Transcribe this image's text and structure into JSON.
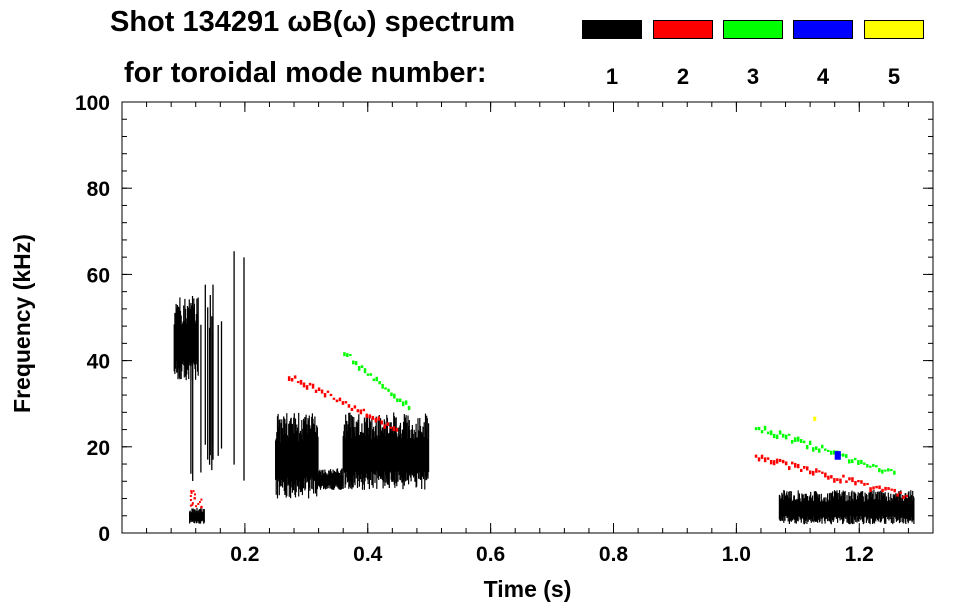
{
  "chart_data": {
    "type": "heatmap",
    "title": "Shot 134291 ωB(ω) spectrum",
    "subtitle": "for toroidal mode number:",
    "xlabel": "Time (s)",
    "ylabel": "Frequency (kHz)",
    "xlim": [
      0.0,
      1.32
    ],
    "ylim": [
      0,
      100
    ],
    "xticks": [
      0.2,
      0.4,
      0.6,
      0.8,
      1.0,
      1.2
    ],
    "xtick_labels": [
      "0.2",
      "0.4",
      "0.6",
      "0.8",
      "1.0",
      "1.2"
    ],
    "yticks": [
      0,
      20,
      40,
      60,
      80,
      100
    ],
    "ytick_labels": [
      "0",
      "20",
      "40",
      "60",
      "80",
      "100"
    ],
    "x_minor_step": 0.04,
    "y_minor_step": 4,
    "legend": [
      {
        "label": "1",
        "color": "#000000"
      },
      {
        "label": "2",
        "color": "#ff0000"
      },
      {
        "label": "3",
        "color": "#00ff00"
      },
      {
        "label": "4",
        "color": "#0000ff"
      },
      {
        "label": "5",
        "color": "#ffff00"
      }
    ],
    "series": [
      {
        "name": "n=1",
        "color": "#000000",
        "regions": [
          {
            "t0": 0.085,
            "t1": 0.125,
            "f0": 35,
            "f1": 55,
            "density": "dense"
          },
          {
            "t0": 0.11,
            "t1": 0.135,
            "f0": 2,
            "f1": 6,
            "density": "dense"
          },
          {
            "t0": 0.11,
            "t1": 0.2,
            "f0": 10,
            "f1": 70,
            "density": "vertical-streaks"
          },
          {
            "t0": 0.25,
            "t1": 0.32,
            "f0": 8,
            "f1": 28,
            "density": "dense"
          },
          {
            "t0": 0.32,
            "t1": 0.36,
            "f0": 10,
            "f1": 15,
            "density": "dense"
          },
          {
            "t0": 0.36,
            "t1": 0.5,
            "f0": 10,
            "f1": 28,
            "density": "dense"
          },
          {
            "t0": 1.07,
            "t1": 1.29,
            "f0": 2,
            "f1": 10,
            "density": "dense"
          }
        ]
      },
      {
        "name": "n=2",
        "color": "#ff0000",
        "regions": [
          {
            "t0": 0.11,
            "t1": 0.13,
            "f0": 6,
            "f1": 10,
            "density": "sparse"
          },
          {
            "t0": 0.27,
            "t1": 0.45,
            "f0": 24,
            "f1": 37,
            "density": "line"
          },
          {
            "t0": 1.03,
            "t1": 1.28,
            "f0": 9,
            "f1": 18,
            "density": "line"
          }
        ]
      },
      {
        "name": "n=3",
        "color": "#00ff00",
        "regions": [
          {
            "t0": 0.36,
            "t1": 0.47,
            "f0": 29,
            "f1": 42,
            "density": "line"
          },
          {
            "t0": 1.03,
            "t1": 1.26,
            "f0": 14,
            "f1": 25,
            "density": "line"
          }
        ]
      },
      {
        "name": "n=4",
        "color": "#0000ff",
        "regions": [
          {
            "t0": 1.16,
            "t1": 1.17,
            "f0": 17,
            "f1": 19,
            "density": "dot"
          }
        ]
      },
      {
        "name": "n=5",
        "color": "#ffff00",
        "regions": [
          {
            "t0": 1.125,
            "t1": 1.13,
            "f0": 26,
            "f1": 27,
            "density": "dot"
          }
        ]
      }
    ]
  }
}
